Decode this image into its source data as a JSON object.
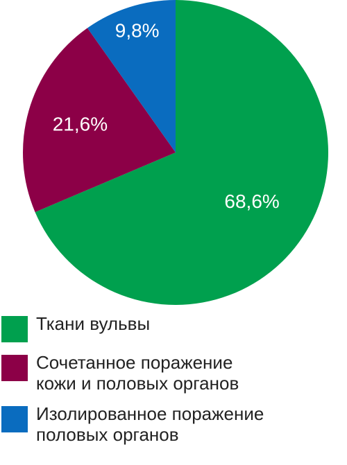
{
  "chart_data": {
    "type": "pie",
    "series": [
      {
        "name": "Ткани вульвы",
        "color": "#00a04e",
        "values": [
          68.6
        ],
        "value_labels": [
          "68,6%"
        ]
      },
      {
        "name": "Сочетанное поражение\nкожи и половых органов",
        "color": "#8c0047",
        "values": [
          21.6
        ],
        "value_labels": [
          "21,6%"
        ]
      },
      {
        "name": "Изолированное поражение\nполовых органов",
        "color": "#0a6cbf",
        "values": [
          9.8
        ],
        "value_labels": [
          "9,8%"
        ]
      }
    ]
  }
}
